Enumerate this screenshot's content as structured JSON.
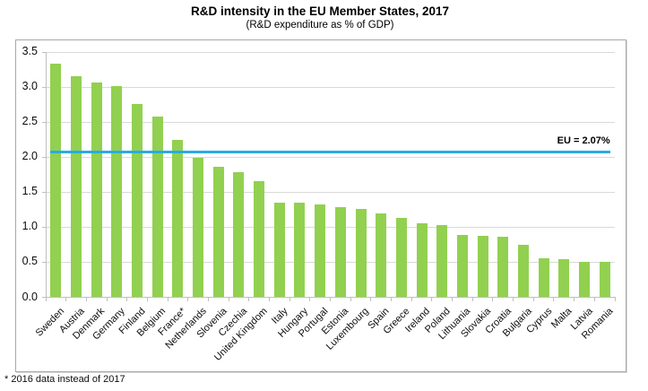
{
  "chart_data": {
    "type": "bar",
    "title": "R&D intensity in the EU Member States, 2017",
    "subtitle": "(R&D expenditure as % of GDP)",
    "footnote": "* 2016 data instead of 2017",
    "xlabel": "",
    "ylabel": "",
    "ylim": [
      0,
      3.5
    ],
    "ytick_step": 0.5,
    "ytick_labels": [
      "0.0",
      "0.5",
      "1.0",
      "1.5",
      "2.0",
      "2.5",
      "3.0",
      "3.5"
    ],
    "grid": true,
    "legend": "none",
    "bar_color": "#92D050",
    "line_color": "#29ABE2",
    "categories": [
      "Sweden",
      "Austria",
      "Denmark",
      "Germany",
      "Finland",
      "Belgium",
      "France*",
      "Netherlands",
      "Slovenia",
      "Czechia",
      "United Kingdom",
      "Italy",
      "Hungary",
      "Portugal",
      "Estonia",
      "Luxembourg",
      "Spain",
      "Greece",
      "Ireland",
      "Poland",
      "Lithuania",
      "Slovakia",
      "Croatia",
      "Bulgaria",
      "Cyprus",
      "Malta",
      "Latvia",
      "Romania"
    ],
    "values": [
      3.33,
      3.16,
      3.06,
      3.02,
      2.76,
      2.58,
      2.25,
      1.99,
      1.86,
      1.79,
      1.66,
      1.35,
      1.35,
      1.33,
      1.29,
      1.26,
      1.2,
      1.13,
      1.05,
      1.03,
      0.89,
      0.88,
      0.86,
      0.75,
      0.56,
      0.54,
      0.51,
      0.5
    ],
    "reference_line": {
      "label": "EU = 2.07%",
      "value": 2.07
    }
  }
}
